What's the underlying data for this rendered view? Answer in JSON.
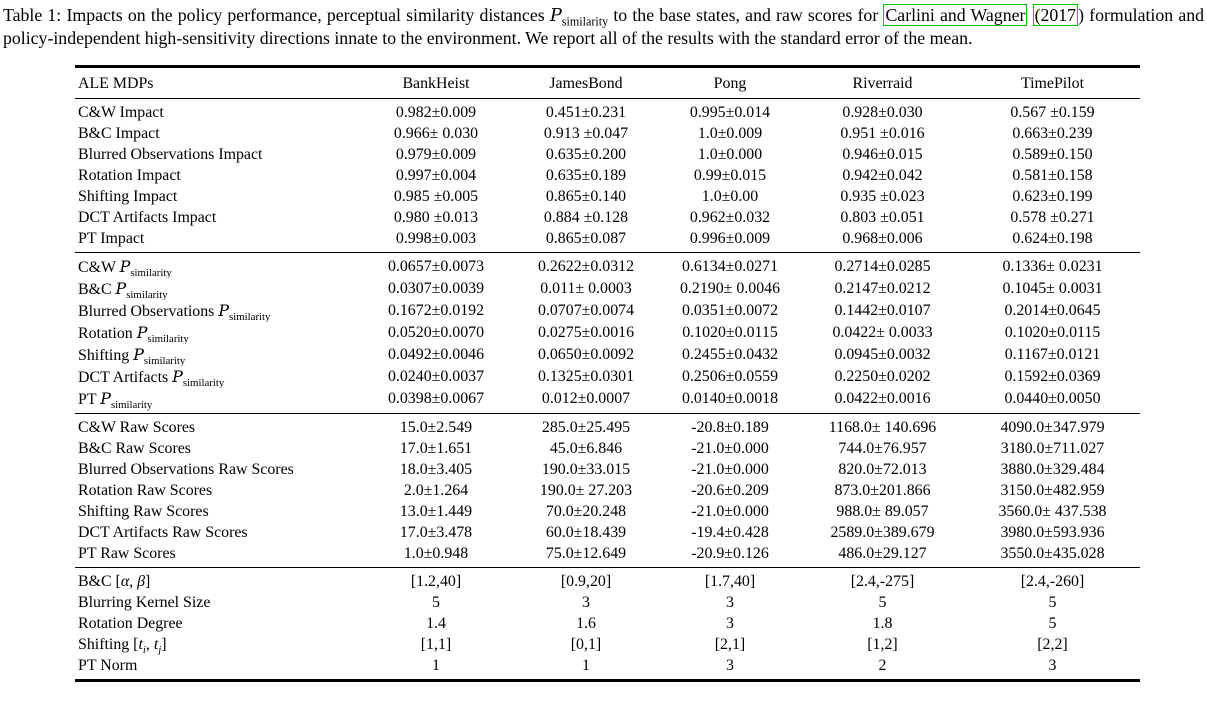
{
  "colors": {
    "citation_box": "#00bf00",
    "text": "#000000",
    "background": "#ffffff"
  },
  "caption": {
    "parts": [
      {
        "kind": "text",
        "text": "Table 1: Impacts on the policy performance, perceptual similarity distances "
      },
      {
        "kind": "math",
        "text": "𝒫_{similarity}"
      },
      {
        "kind": "text",
        "text": " to the base states, and raw scores for "
      },
      {
        "kind": "cite",
        "text": "Carlini and Wagner"
      },
      {
        "kind": "text",
        "text": " "
      },
      {
        "kind": "cite",
        "text": "(2017"
      },
      {
        "kind": "text",
        "text": ") formulation and policy-independent high-sensitivity directions innate to the environment. We report all of the results with the standard error of the mean."
      }
    ]
  },
  "table": {
    "header": {
      "row_label": "ALE MDPs",
      "columns": [
        "BankHeist",
        "JamesBond",
        "Pong",
        "Riverraid",
        "TimePilot"
      ]
    },
    "sections": [
      {
        "name": "impact",
        "rows": [
          {
            "label": "C&W Impact",
            "values": [
              "0.982±0.009",
              "0.451±0.231",
              "0.995±0.014",
              "0.928±0.030",
              "0.567 ±0.159"
            ]
          },
          {
            "label": "B&C Impact",
            "values": [
              "0.966± 0.030",
              "0.913 ±0.047",
              "1.0±0.009",
              "0.951 ±0.016",
              "0.663±0.239"
            ]
          },
          {
            "label": "Blurred Observations Impact",
            "values": [
              "0.979±0.009",
              "0.635±0.200",
              "1.0±0.000",
              "0.946±0.015",
              "0.589±0.150"
            ]
          },
          {
            "label": "Rotation Impact",
            "values": [
              "0.997±0.004",
              "0.635±0.189",
              "0.99±0.015",
              "0.942±0.042",
              "0.581±0.158"
            ]
          },
          {
            "label": "Shifting Impact",
            "values": [
              "0.985 ±0.005",
              "0.865±0.140",
              "1.0±0.00",
              "0.935 ±0.023",
              "0.623±0.199"
            ]
          },
          {
            "label": "DCT Artifacts Impact",
            "values": [
              "0.980 ±0.013",
              "0.884 ±0.128",
              "0.962±0.032",
              "0.803 ±0.051",
              "0.578 ±0.271"
            ]
          },
          {
            "label": "PT Impact",
            "values": [
              "0.998±0.003",
              "0.865±0.087",
              "0.996±0.009",
              "0.968±0.006",
              "0.624±0.198"
            ]
          }
        ]
      },
      {
        "name": "perceptual-similarity",
        "rows": [
          {
            "label": "C&W 𝒫_{similarity}",
            "values": [
              "0.0657±0.0073",
              "0.2622±0.0312",
              "0.6134±0.0271",
              "0.2714±0.0285",
              "0.1336± 0.0231"
            ]
          },
          {
            "label": "B&C 𝒫_{similarity}",
            "values": [
              "0.0307±0.0039",
              "0.011± 0.0003",
              "0.2190± 0.0046",
              "0.2147±0.0212",
              "0.1045± 0.0031"
            ]
          },
          {
            "label": "Blurred Observations 𝒫_{similarity}",
            "values": [
              "0.1672±0.0192",
              "0.0707±0.0074",
              "0.0351±0.0072",
              "0.1442±0.0107",
              "0.2014±0.0645"
            ]
          },
          {
            "label": "Rotation 𝒫_{similarity}",
            "values": [
              "0.0520±0.0070",
              "0.0275±0.0016",
              "0.1020±0.0115",
              "0.0422± 0.0033",
              "0.1020±0.0115"
            ]
          },
          {
            "label": "Shifting 𝒫_{similarity}",
            "values": [
              "0.0492±0.0046",
              "0.0650±0.0092",
              "0.2455±0.0432",
              "0.0945±0.0032",
              "0.1167±0.0121"
            ]
          },
          {
            "label": "DCT Artifacts 𝒫_{similarity}",
            "values": [
              "0.0240±0.0037",
              "0.1325±0.0301",
              "0.2506±0.0559",
              "0.2250±0.0202",
              "0.1592±0.0369"
            ]
          },
          {
            "label": "PT 𝒫_{similarity}",
            "values": [
              "0.0398±0.0067",
              "0.012±0.0007",
              "0.0140±0.0018",
              "0.0422±0.0016",
              "0.0440±0.0050"
            ]
          }
        ]
      },
      {
        "name": "raw-scores",
        "rows": [
          {
            "label": "C&W Raw Scores",
            "values": [
              "15.0±2.549",
              "285.0±25.495",
              "-20.8±0.189",
              "1168.0± 140.696",
              "4090.0±347.979"
            ]
          },
          {
            "label": "B&C Raw Scores",
            "values": [
              "17.0±1.651",
              "45.0±6.846",
              "-21.0±0.000",
              "744.0±76.957",
              "3180.0±711.027"
            ]
          },
          {
            "label": "Blurred Observations Raw Scores",
            "values": [
              "18.0±3.405",
              "190.0±33.015",
              "-21.0±0.000",
              "820.0±72.013",
              "3880.0±329.484"
            ]
          },
          {
            "label": "Rotation Raw Scores",
            "values": [
              "2.0±1.264",
              "190.0± 27.203",
              "-20.6±0.209",
              "873.0±201.866",
              "3150.0±482.959"
            ]
          },
          {
            "label": "Shifting Raw Scores",
            "values": [
              "13.0±1.449",
              "70.0±20.248",
              "-21.0±0.000",
              "988.0± 89.057",
              "3560.0± 437.538"
            ]
          },
          {
            "label": "DCT Artifacts Raw Scores",
            "values": [
              "17.0±3.478",
              "60.0±18.439",
              "-19.4±0.428",
              "2589.0±389.679",
              "3980.0±593.936"
            ]
          },
          {
            "label": "PT Raw Scores",
            "values": [
              "1.0±0.948",
              "75.0±12.649",
              "-20.9±0.126",
              "486.0±29.127",
              "3550.0±435.028"
            ]
          }
        ]
      },
      {
        "name": "parameters",
        "rows": [
          {
            "label": "B&C [*α*, *β*]",
            "values": [
              "[1.2,40]",
              "[0.9,20]",
              "[1.7,40]",
              "[2.4,-275]",
              "[2.4,-260]"
            ]
          },
          {
            "label": "Blurring Kernel Size",
            "values": [
              "5",
              "3",
              "3",
              "5",
              "5"
            ]
          },
          {
            "label": "Rotation Degree",
            "values": [
              "1.4",
              "1.6",
              "3",
              "1.8",
              "5"
            ]
          },
          {
            "label": "Shifting [*t*_{*i*}, *t*_{*j*}]",
            "values": [
              "[1,1]",
              "[0,1]",
              "[2,1]",
              "[1,2]",
              "[2,2]"
            ]
          },
          {
            "label": "PT Norm",
            "values": [
              "1",
              "1",
              "3",
              "2",
              "3"
            ]
          }
        ]
      }
    ]
  }
}
